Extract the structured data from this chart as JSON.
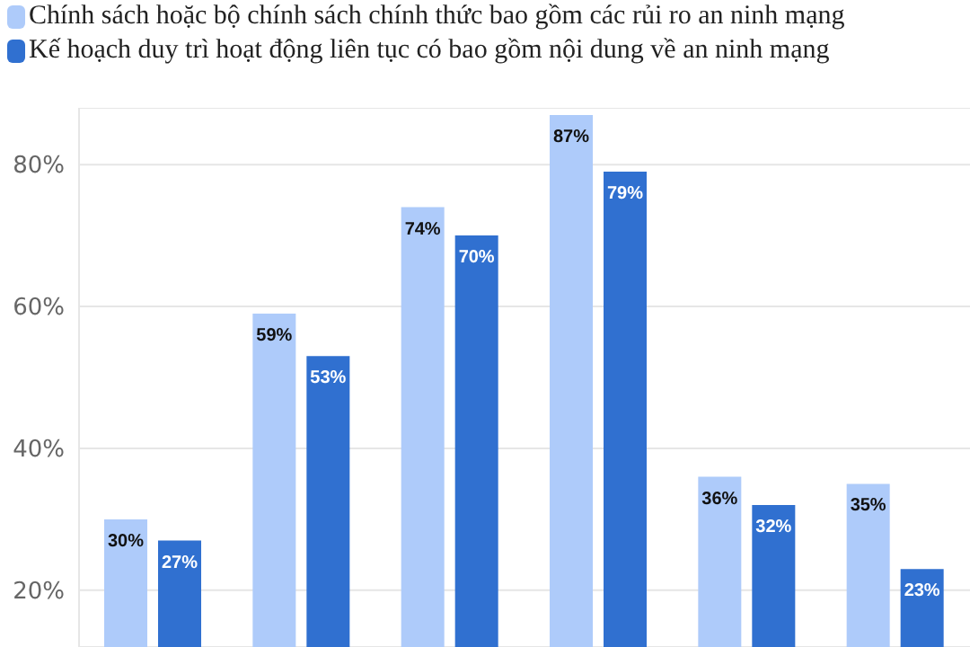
{
  "chart_data": {
    "type": "bar",
    "categories": [
      null,
      null,
      null,
      null,
      null,
      null
    ],
    "series": [
      {
        "name": "Chính sách hoặc bộ chính sách chính thức bao gồm các rủi ro an ninh mạng",
        "color": "#aecbfa",
        "values": [
          30,
          59,
          74,
          87,
          36,
          35
        ],
        "value_labels": [
          "30%",
          "59%",
          "74%",
          "87%",
          "36%",
          "35%"
        ]
      },
      {
        "name": "Kế hoạch duy trì hoạt động liên tục có bao gồm nội dung về an ninh mạng",
        "color": "#3070d0",
        "values": [
          27,
          53,
          70,
          79,
          32,
          23
        ],
        "value_labels": [
          "27%",
          "53%",
          "70%",
          "79%",
          "32%",
          "23%"
        ]
      }
    ],
    "ylim": [
      12,
      88
    ],
    "yticks": [
      {
        "value": 20,
        "label": "20%"
      },
      {
        "value": 40,
        "label": "40%"
      },
      {
        "value": 60,
        "label": "60%"
      },
      {
        "value": 80,
        "label": "80%"
      }
    ],
    "grid": "y",
    "legend": "top left",
    "tick_labels": "y"
  }
}
